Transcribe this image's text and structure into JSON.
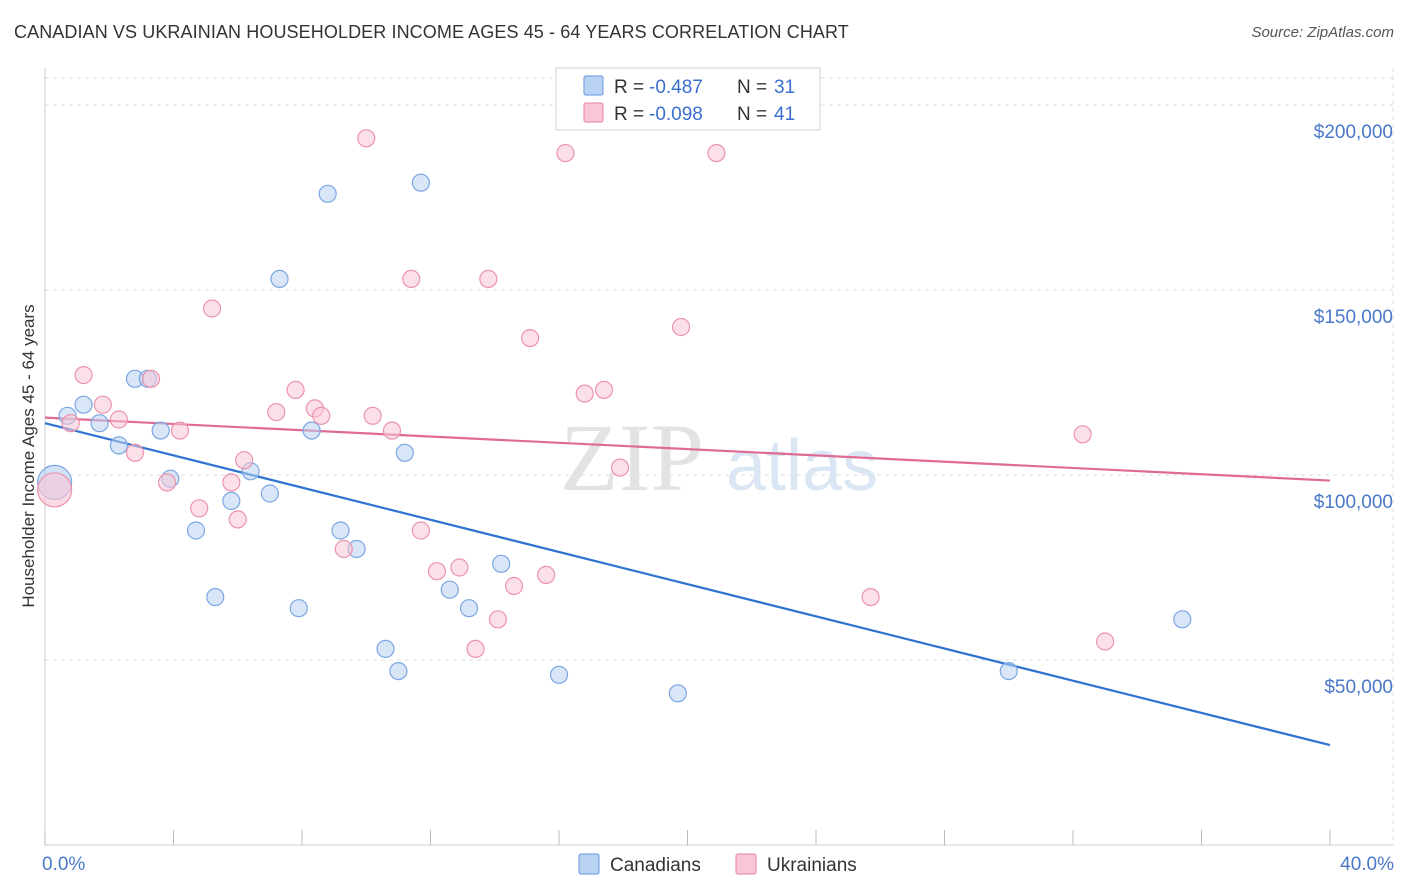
{
  "title": "CANADIAN VS UKRAINIAN HOUSEHOLDER INCOME AGES 45 - 64 YEARS CORRELATION CHART",
  "source": "Source: ZipAtlas.com",
  "watermark": {
    "zip": "ZIP",
    "atlas": "atlas"
  },
  "colors": {
    "canadian_fill": "#b9d1f3",
    "canadian_stroke": "#7aa6e3",
    "canadian_line": "#2f74d0",
    "ukrainian_fill": "#f8c6d5",
    "ukrainian_stroke": "#ec93ad",
    "ukrainian_line": "#e06b92",
    "tick_label": "#4a78c8",
    "grid": "#dddddd"
  },
  "legend_top": {
    "rows": [
      {
        "series": "canadians",
        "r_label": "R =",
        "r_value": "-0.487",
        "n_label": "N =",
        "n_value": "31"
      },
      {
        "series": "ukrainians",
        "r_label": "R =",
        "r_value": "-0.098",
        "n_label": "N =",
        "n_value": "41"
      }
    ]
  },
  "legend_bottom": [
    {
      "series": "canadians",
      "label": "Canadians"
    },
    {
      "series": "ukrainians",
      "label": "Ukrainians"
    }
  ],
  "chart_data": {
    "type": "scatter",
    "title": "CANADIAN VS UKRAINIAN HOUSEHOLDER INCOME AGES 45 - 64 YEARS CORRELATION CHART",
    "xlabel": "",
    "ylabel": "Householder Income Ages 45 - 64 years",
    "xlim": [
      0,
      40
    ],
    "ylim": [
      0,
      210000
    ],
    "x_tick_labels": [
      {
        "value": 0,
        "label": "0.0%"
      },
      {
        "value": 40,
        "label": "40.0%"
      }
    ],
    "x_minor_ticks": [
      0,
      4,
      8,
      12,
      16,
      20,
      24,
      28,
      32,
      36,
      40
    ],
    "y_ticks": [
      {
        "value": 50000,
        "label": "$50,000"
      },
      {
        "value": 100000,
        "label": "$100,000"
      },
      {
        "value": 150000,
        "label": "$150,000"
      },
      {
        "value": 200000,
        "label": "$200,000"
      }
    ],
    "grid": true,
    "legend_position": "top-center",
    "series": [
      {
        "name": "Canadians",
        "points": [
          {
            "x": 0.3,
            "y": 98000,
            "big": true
          },
          {
            "x": 0.7,
            "y": 116000
          },
          {
            "x": 1.2,
            "y": 119000
          },
          {
            "x": 1.7,
            "y": 114000
          },
          {
            "x": 2.3,
            "y": 108000
          },
          {
            "x": 2.8,
            "y": 126000
          },
          {
            "x": 3.2,
            "y": 126000
          },
          {
            "x": 3.6,
            "y": 112000
          },
          {
            "x": 3.9,
            "y": 99000
          },
          {
            "x": 4.7,
            "y": 85000
          },
          {
            "x": 5.3,
            "y": 67000
          },
          {
            "x": 5.8,
            "y": 93000
          },
          {
            "x": 6.4,
            "y": 101000
          },
          {
            "x": 7.0,
            "y": 95000
          },
          {
            "x": 7.3,
            "y": 153000
          },
          {
            "x": 7.9,
            "y": 64000
          },
          {
            "x": 8.3,
            "y": 112000
          },
          {
            "x": 8.8,
            "y": 176000
          },
          {
            "x": 9.2,
            "y": 85000
          },
          {
            "x": 9.7,
            "y": 80000
          },
          {
            "x": 10.6,
            "y": 53000
          },
          {
            "x": 11.0,
            "y": 47000
          },
          {
            "x": 11.2,
            "y": 106000
          },
          {
            "x": 11.7,
            "y": 179000
          },
          {
            "x": 12.6,
            "y": 69000
          },
          {
            "x": 13.2,
            "y": 64000
          },
          {
            "x": 14.2,
            "y": 76000
          },
          {
            "x": 16.0,
            "y": 46000
          },
          {
            "x": 19.7,
            "y": 41000
          },
          {
            "x": 30.0,
            "y": 47000
          },
          {
            "x": 35.4,
            "y": 61000
          }
        ],
        "trend": {
          "x": [
            0,
            40
          ],
          "y": [
            114000,
            27000
          ]
        }
      },
      {
        "name": "Ukrainians",
        "points": [
          {
            "x": 0.3,
            "y": 96000,
            "big": true
          },
          {
            "x": 0.8,
            "y": 114000
          },
          {
            "x": 1.2,
            "y": 127000
          },
          {
            "x": 1.8,
            "y": 119000
          },
          {
            "x": 2.3,
            "y": 115000
          },
          {
            "x": 2.8,
            "y": 106000
          },
          {
            "x": 3.3,
            "y": 126000
          },
          {
            "x": 3.8,
            "y": 98000
          },
          {
            "x": 4.2,
            "y": 112000
          },
          {
            "x": 4.8,
            "y": 91000
          },
          {
            "x": 5.2,
            "y": 145000
          },
          {
            "x": 5.8,
            "y": 98000
          },
          {
            "x": 6.0,
            "y": 88000
          },
          {
            "x": 6.2,
            "y": 104000
          },
          {
            "x": 7.2,
            "y": 117000
          },
          {
            "x": 7.8,
            "y": 123000
          },
          {
            "x": 8.4,
            "y": 118000
          },
          {
            "x": 8.6,
            "y": 116000
          },
          {
            "x": 9.3,
            "y": 80000
          },
          {
            "x": 10.0,
            "y": 191000
          },
          {
            "x": 10.2,
            "y": 116000
          },
          {
            "x": 10.8,
            "y": 112000
          },
          {
            "x": 11.4,
            "y": 153000
          },
          {
            "x": 11.7,
            "y": 85000
          },
          {
            "x": 12.2,
            "y": 74000
          },
          {
            "x": 12.9,
            "y": 75000
          },
          {
            "x": 13.4,
            "y": 53000
          },
          {
            "x": 13.8,
            "y": 153000
          },
          {
            "x": 14.1,
            "y": 61000
          },
          {
            "x": 14.6,
            "y": 70000
          },
          {
            "x": 15.1,
            "y": 137000
          },
          {
            "x": 15.6,
            "y": 73000
          },
          {
            "x": 16.2,
            "y": 187000
          },
          {
            "x": 16.8,
            "y": 122000
          },
          {
            "x": 17.4,
            "y": 123000
          },
          {
            "x": 17.9,
            "y": 102000
          },
          {
            "x": 19.8,
            "y": 140000
          },
          {
            "x": 20.9,
            "y": 187000
          },
          {
            "x": 25.7,
            "y": 67000
          },
          {
            "x": 32.3,
            "y": 111000
          },
          {
            "x": 33.0,
            "y": 55000
          }
        ],
        "trend": {
          "x": [
            0,
            40
          ],
          "y": [
            115500,
            98500
          ]
        }
      }
    ]
  }
}
